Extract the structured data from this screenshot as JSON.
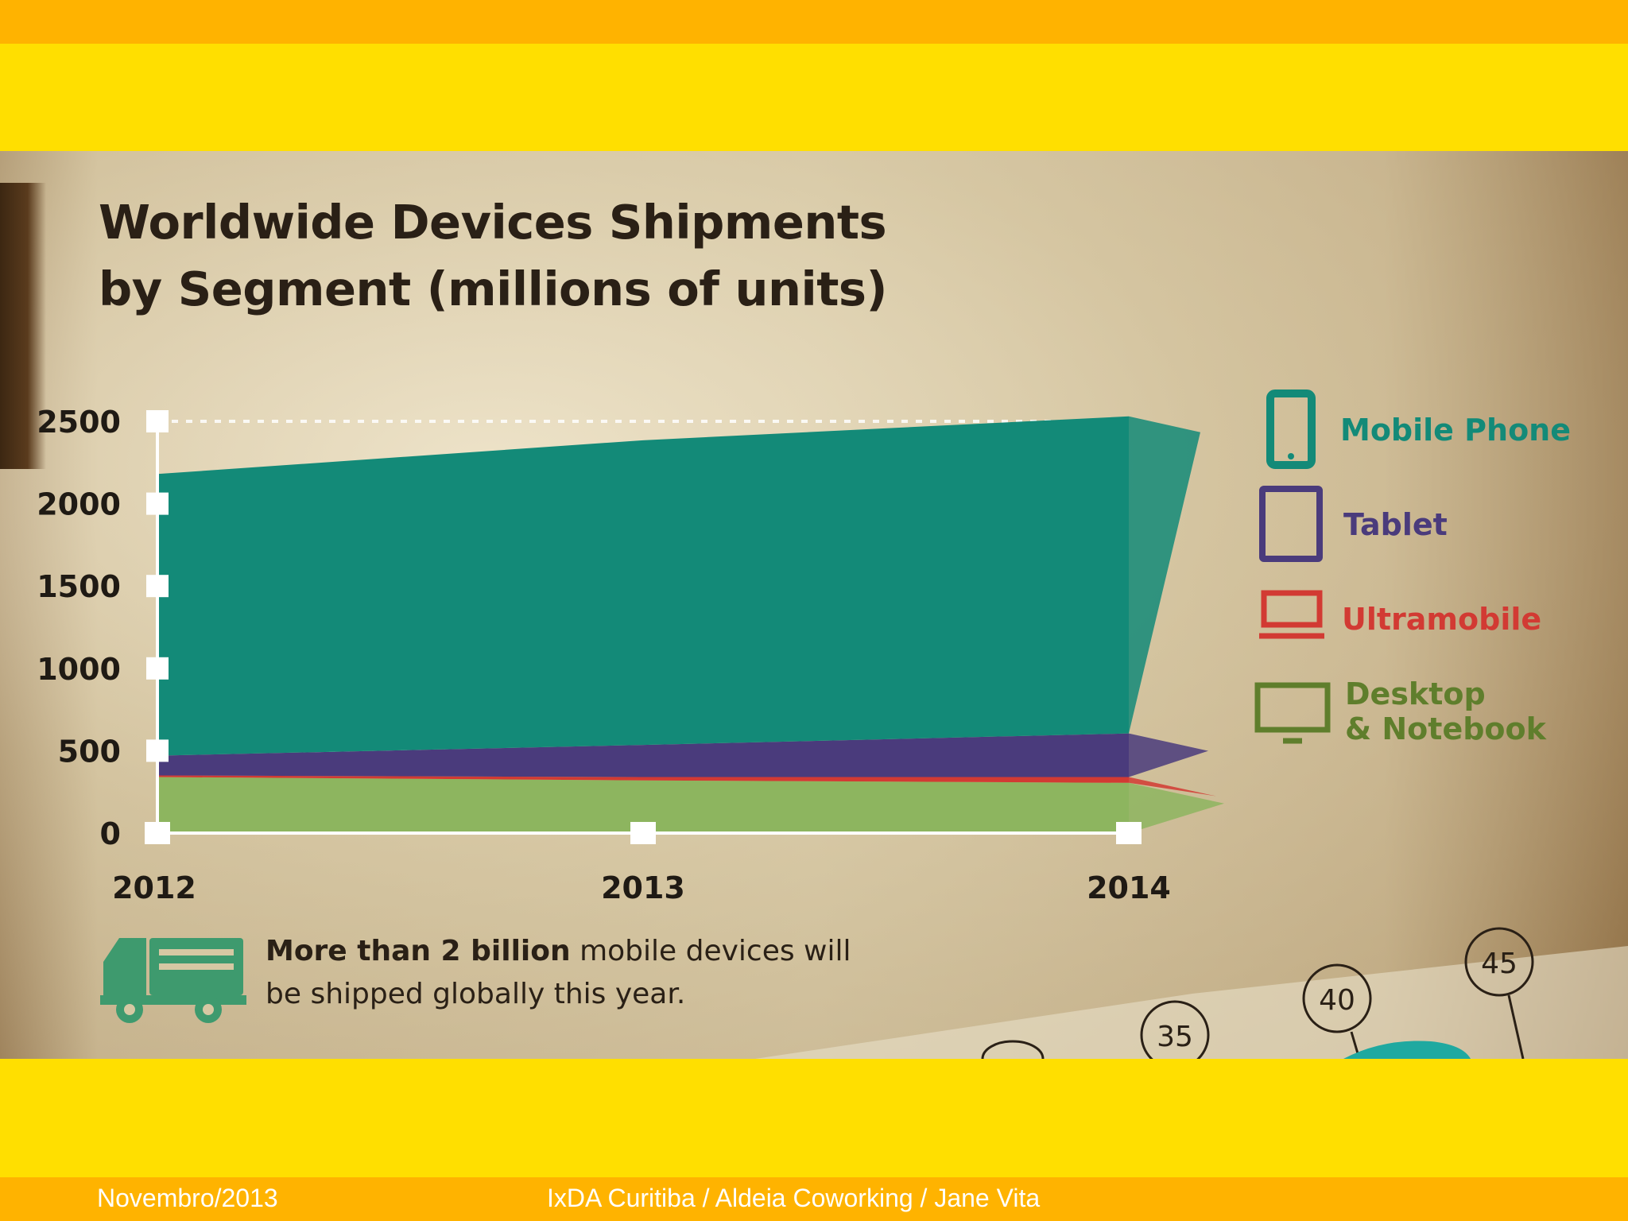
{
  "slide": {
    "footer_date": "Novembro/2013",
    "footer_credit": "IxDA Curitiba / Aldeia Coworking / Jane Vita"
  },
  "chart_title_line1": "Worldwide Devices Shipments",
  "chart_title_line2": "by Segment (millions of units)",
  "note": {
    "bold": "More than 2 billion",
    "rest_line1": " mobile devices will",
    "line2": "be shipped globally this year."
  },
  "decor_numbers": [
    "35",
    "40",
    "45"
  ],
  "colors": {
    "mobile": "#138A78",
    "tablet": "#4A3B7C",
    "ultramobile": "#D23A33",
    "desktop": "#8DB55F",
    "legend_mobile": "#138A78",
    "legend_tablet": "#4A3B7C",
    "legend_ultramobile": "#D23A33",
    "legend_desktop": "#5F7E2C"
  },
  "chart_data": {
    "type": "area",
    "stacked": true,
    "title": "Worldwide Devices Shipments by Segment (millions of units)",
    "x": [
      "2012",
      "2013",
      "2014"
    ],
    "y_ticks": [
      "0",
      "500",
      "1000",
      "1500",
      "2000",
      "2500"
    ],
    "ylim": [
      0,
      2500
    ],
    "grid": true,
    "legend_position": "right",
    "series": [
      {
        "name": "Desktop & Notebook",
        "values": [
          340,
          320,
          305
        ]
      },
      {
        "name": "Ultramobile",
        "values": [
          10,
          20,
          35
        ]
      },
      {
        "name": "Tablet",
        "values": [
          120,
          195,
          265
        ]
      },
      {
        "name": "Mobile Phone",
        "values": [
          1710,
          1850,
          1925
        ]
      }
    ],
    "legend": [
      "Mobile Phone",
      "Tablet",
      "Ultramobile",
      "Desktop",
      "& Notebook"
    ]
  }
}
